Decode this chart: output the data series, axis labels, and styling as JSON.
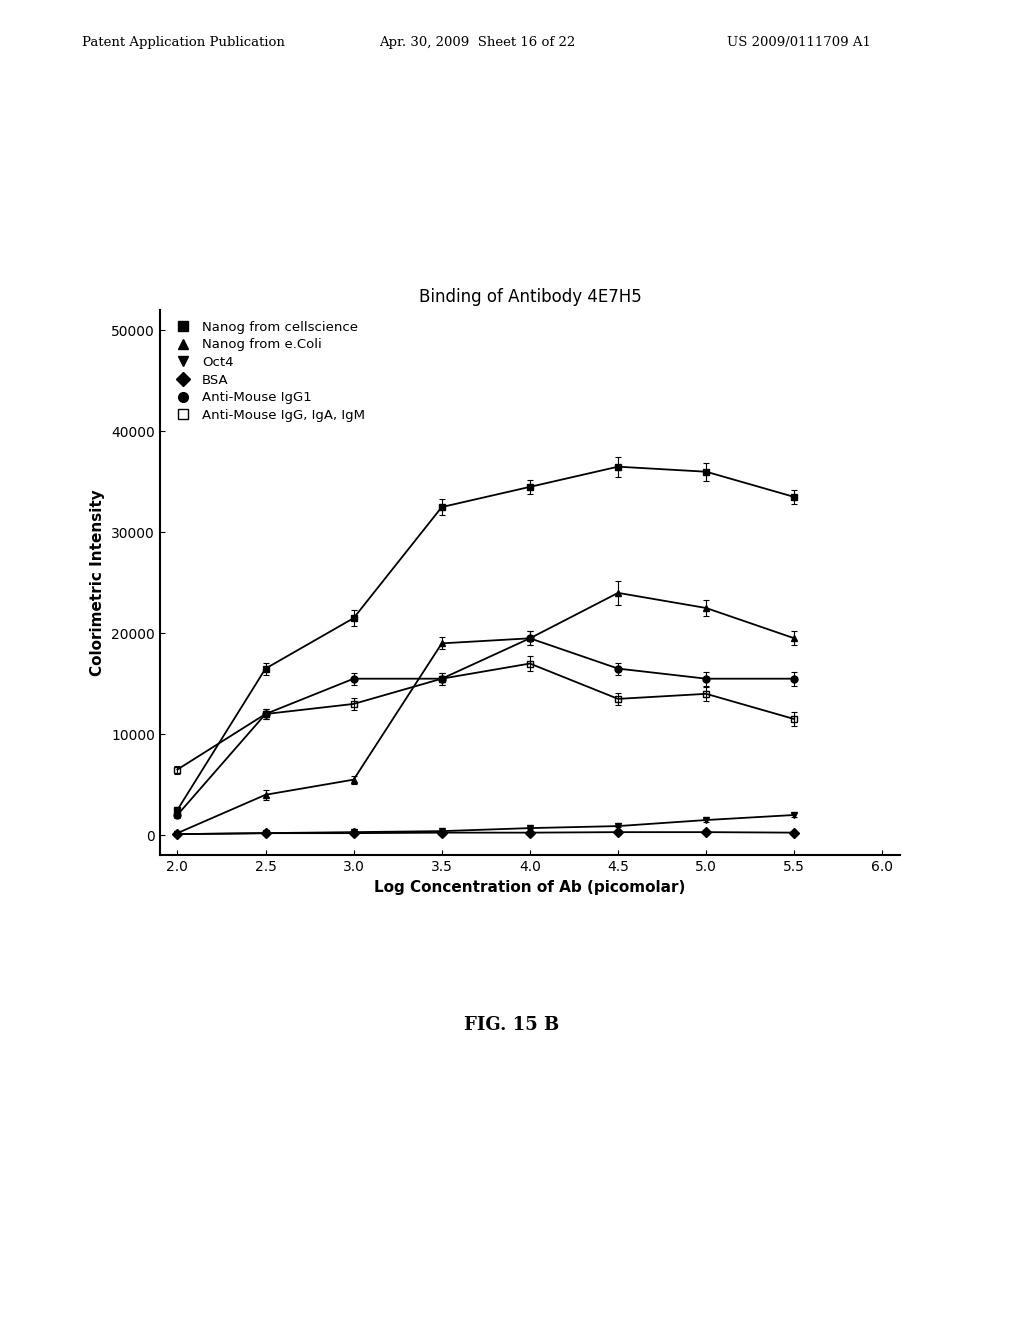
{
  "title": "Binding of Antibody 4E7H5",
  "xlabel": "Log Concentration of Ab (picomolar)",
  "ylabel": "Colorimetric Intensity",
  "xlim": [
    1.9,
    6.1
  ],
  "ylim": [
    -2000,
    52000
  ],
  "xticks": [
    2.0,
    2.5,
    3.0,
    3.5,
    4.0,
    4.5,
    5.0,
    5.5,
    6.0
  ],
  "yticks": [
    0,
    10000,
    20000,
    30000,
    40000,
    50000
  ],
  "fig_caption": "FIG. 15 B",
  "header_left": "Patent Application Publication",
  "header_mid": "Apr. 30, 2009  Sheet 16 of 22",
  "header_right": "US 2009/0111709 A1",
  "series": [
    {
      "label": "Nanog from cellscience",
      "marker": "s",
      "fillstyle": "full",
      "x": [
        2.0,
        2.5,
        3.0,
        3.5,
        4.0,
        4.5,
        5.0,
        5.5
      ],
      "y": [
        2500,
        16500,
        21500,
        32500,
        34500,
        36500,
        36000,
        33500
      ],
      "yerr": [
        300,
        600,
        800,
        800,
        700,
        1000,
        900,
        700
      ],
      "Bmax": 37000,
      "EC50": 3.1,
      "n": 2.5
    },
    {
      "label": "Nanog from e.Coli",
      "marker": "^",
      "fillstyle": "full",
      "x": [
        2.0,
        2.5,
        3.0,
        3.5,
        4.0,
        4.5,
        5.0,
        5.5
      ],
      "y": [
        200,
        4000,
        5500,
        19000,
        19500,
        24000,
        22500,
        19500
      ],
      "yerr": [
        100,
        500,
        400,
        600,
        700,
        1200,
        800,
        700
      ],
      "Bmax": 23000,
      "EC50": 3.6,
      "n": 2.0
    },
    {
      "label": "Oct4",
      "marker": "v",
      "fillstyle": "full",
      "x": [
        2.0,
        2.5,
        3.0,
        3.5,
        4.0,
        4.5,
        5.0,
        5.5
      ],
      "y": [
        100,
        200,
        300,
        400,
        700,
        900,
        1500,
        2000
      ],
      "yerr": [
        50,
        50,
        50,
        50,
        80,
        100,
        150,
        200
      ],
      "Bmax": 2500,
      "EC50": 5.5,
      "n": 1.5
    },
    {
      "label": "BSA",
      "marker": "D",
      "fillstyle": "full",
      "x": [
        2.0,
        2.5,
        3.0,
        3.5,
        4.0,
        4.5,
        5.0,
        5.5
      ],
      "y": [
        100,
        200,
        200,
        250,
        250,
        300,
        300,
        250
      ],
      "yerr": [
        30,
        30,
        30,
        30,
        30,
        30,
        30,
        30
      ],
      "Bmax": 300,
      "EC50": 6.0,
      "n": 1.0
    },
    {
      "label": "Anti-Mouse IgG1",
      "marker": "o",
      "fillstyle": "full",
      "x": [
        2.0,
        2.5,
        3.0,
        3.5,
        4.0,
        4.5,
        5.0,
        5.5
      ],
      "y": [
        2000,
        12000,
        15500,
        15500,
        19500,
        16500,
        15500,
        15500
      ],
      "yerr": [
        300,
        500,
        600,
        600,
        700,
        600,
        700,
        700
      ],
      "Bmax": 16000,
      "EC50": 2.8,
      "n": 3.0
    },
    {
      "label": "Anti-Mouse IgG, IgA, IgM",
      "marker": "s",
      "fillstyle": "none",
      "x": [
        2.0,
        2.5,
        3.0,
        3.5,
        4.0,
        4.5,
        5.0,
        5.5
      ],
      "y": [
        6500,
        12000,
        13000,
        15500,
        17000,
        13500,
        14000,
        11500
      ],
      "yerr": [
        400,
        500,
        600,
        600,
        700,
        600,
        700,
        700
      ],
      "Bmax": 15000,
      "EC50": 2.6,
      "n": 3.0
    }
  ]
}
